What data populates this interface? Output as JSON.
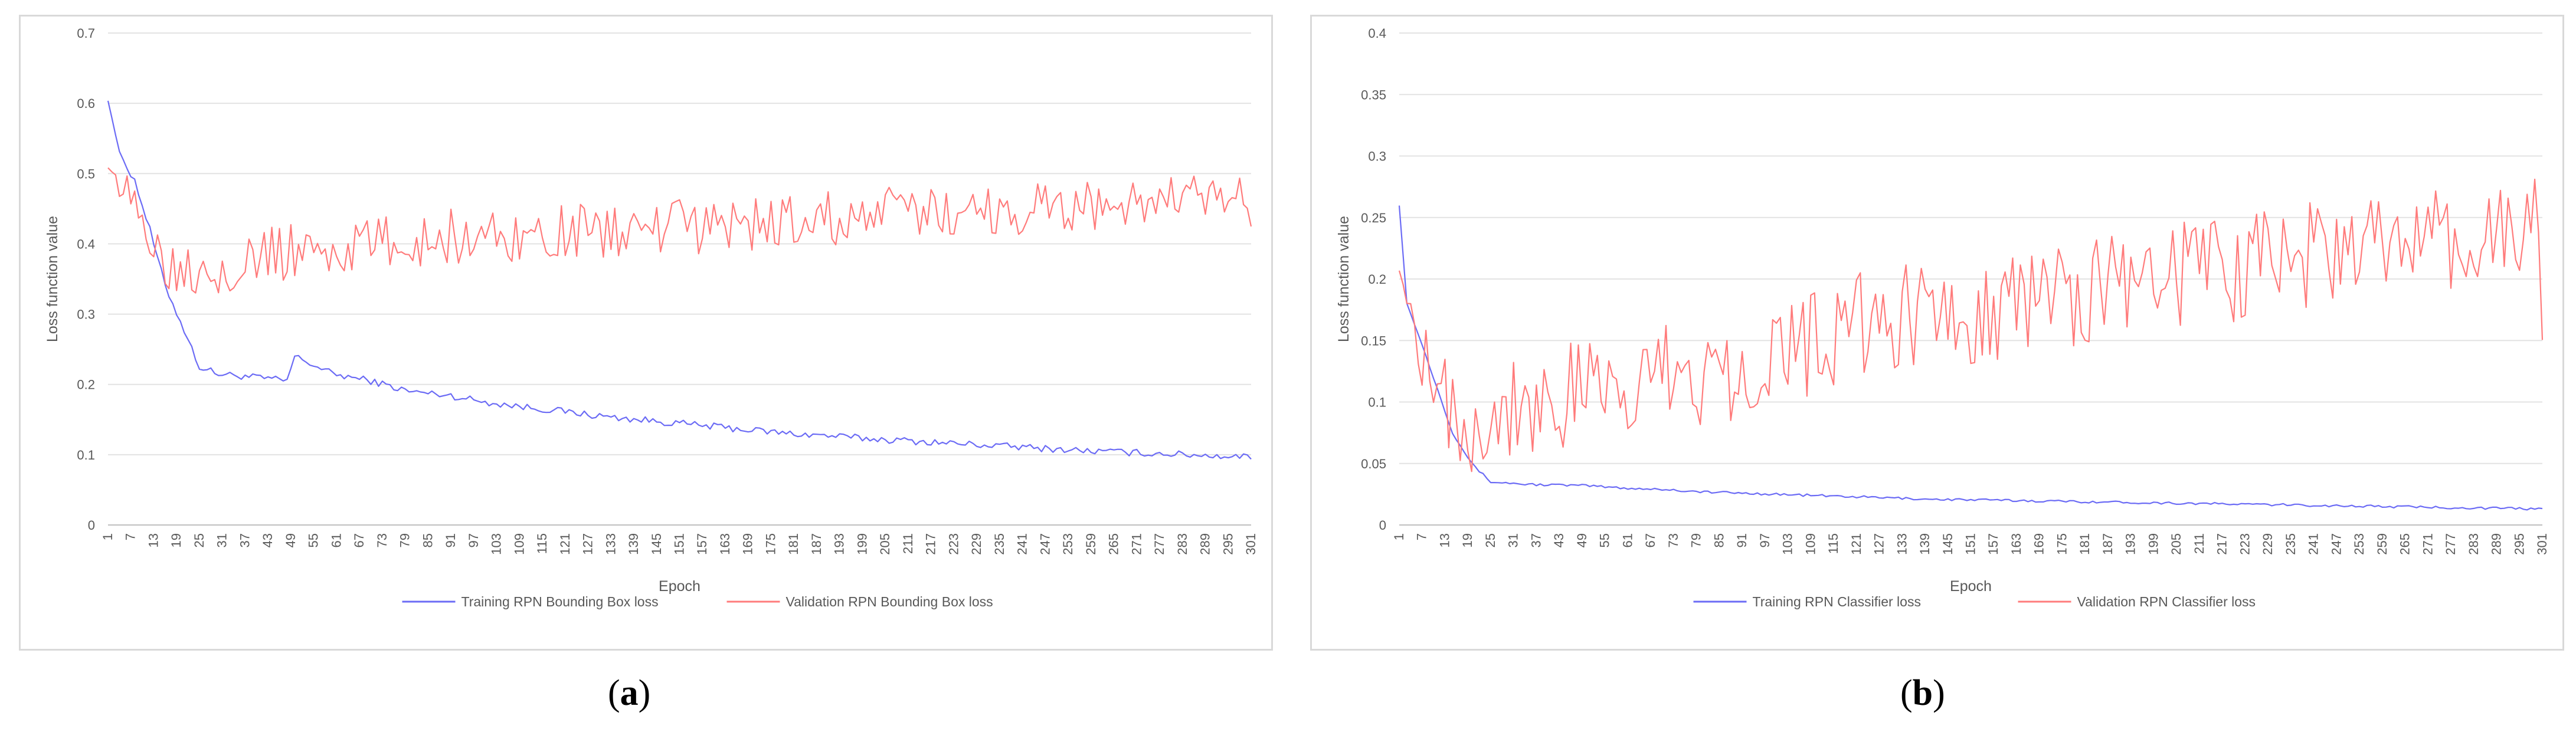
{
  "chart_data": [
    {
      "type": "line",
      "panel_label": "a",
      "xlabel": "Epoch",
      "ylabel": "Loss function value",
      "ylim": [
        0,
        0.7
      ],
      "yticks": [
        "0",
        "0.1",
        "0.2",
        "0.3",
        "0.4",
        "0.5",
        "0.6",
        "0.7"
      ],
      "xlim": [
        1,
        301
      ],
      "xtick_start": 1,
      "xtick_step": 6,
      "xtick_end": 301,
      "legend_position": "bottom",
      "series": [
        {
          "name": "Training RPN Bounding Box loss",
          "color": "#6b6bf5",
          "anchors": [
            [
              1,
              0.605
            ],
            [
              4,
              0.53
            ],
            [
              8,
              0.49
            ],
            [
              12,
              0.42
            ],
            [
              16,
              0.34
            ],
            [
              20,
              0.29
            ],
            [
              25,
              0.225
            ],
            [
              30,
              0.215
            ],
            [
              40,
              0.21
            ],
            [
              48,
              0.205
            ],
            [
              50,
              0.24
            ],
            [
              60,
              0.215
            ],
            [
              70,
              0.205
            ],
            [
              80,
              0.19
            ],
            [
              90,
              0.185
            ],
            [
              100,
              0.175
            ],
            [
              110,
              0.168
            ],
            [
              120,
              0.162
            ],
            [
              130,
              0.155
            ],
            [
              140,
              0.15
            ],
            [
              150,
              0.145
            ],
            [
              160,
              0.14
            ],
            [
              170,
              0.135
            ],
            [
              180,
              0.13
            ],
            [
              190,
              0.127
            ],
            [
              200,
              0.123
            ],
            [
              210,
              0.12
            ],
            [
              220,
              0.117
            ],
            [
              230,
              0.114
            ],
            [
              240,
              0.111
            ],
            [
              250,
              0.108
            ],
            [
              260,
              0.105
            ],
            [
              270,
              0.103
            ],
            [
              280,
              0.101
            ],
            [
              290,
              0.099
            ],
            [
              301,
              0.097
            ]
          ],
          "noise": 0.005
        },
        {
          "name": "Validation RPN Bounding Box loss",
          "color": "#ff7b7b",
          "anchors": [
            [
              1,
              0.52
            ],
            [
              5,
              0.46
            ],
            [
              10,
              0.45
            ],
            [
              15,
              0.38
            ],
            [
              20,
              0.37
            ],
            [
              25,
              0.37
            ],
            [
              30,
              0.37
            ],
            [
              40,
              0.38
            ],
            [
              50,
              0.39
            ],
            [
              60,
              0.39
            ],
            [
              70,
              0.4
            ],
            [
              80,
              0.4
            ],
            [
              90,
              0.41
            ],
            [
              100,
              0.41
            ],
            [
              120,
              0.415
            ],
            [
              140,
              0.42
            ],
            [
              160,
              0.425
            ],
            [
              180,
              0.43
            ],
            [
              200,
              0.44
            ],
            [
              220,
              0.445
            ],
            [
              240,
              0.45
            ],
            [
              260,
              0.455
            ],
            [
              280,
              0.46
            ],
            [
              300,
              0.46
            ],
            [
              301,
              0.405
            ]
          ],
          "noise": 0.04
        }
      ]
    },
    {
      "type": "line",
      "panel_label": "b",
      "xlabel": "Epoch",
      "ylabel": "Loss function value",
      "ylim": [
        0,
        0.4
      ],
      "yticks": [
        "0",
        "0.05",
        "0.1",
        "0.15",
        "0.2",
        "0.25",
        "0.3",
        "0.35",
        "0.4"
      ],
      "xlim": [
        1,
        301
      ],
      "xtick_start": 1,
      "xtick_step": 6,
      "xtick_end": 301,
      "legend_position": "bottom",
      "series": [
        {
          "name": "Training RPN Classifier loss",
          "color": "#6b6bf5",
          "anchors": [
            [
              1,
              0.26
            ],
            [
              3,
              0.18
            ],
            [
              6,
              0.155
            ],
            [
              10,
              0.12
            ],
            [
              15,
              0.075
            ],
            [
              20,
              0.05
            ],
            [
              25,
              0.035
            ],
            [
              35,
              0.033
            ],
            [
              50,
              0.032
            ],
            [
              60,
              0.03
            ],
            [
              70,
              0.029
            ],
            [
              80,
              0.027
            ],
            [
              90,
              0.026
            ],
            [
              100,
              0.025
            ],
            [
              120,
              0.023
            ],
            [
              140,
              0.021
            ],
            [
              160,
              0.02
            ],
            [
              180,
              0.019
            ],
            [
              200,
              0.018
            ],
            [
              220,
              0.017
            ],
            [
              240,
              0.016
            ],
            [
              260,
              0.015
            ],
            [
              280,
              0.014
            ],
            [
              301,
              0.013
            ]
          ],
          "noise": 0.001
        },
        {
          "name": "Validation RPN Classifier loss",
          "color": "#ff7b7b",
          "anchors": [
            [
              1,
              0.22
            ],
            [
              5,
              0.16
            ],
            [
              10,
              0.14
            ],
            [
              15,
              0.09
            ],
            [
              20,
              0.085
            ],
            [
              25,
              0.08
            ],
            [
              30,
              0.1
            ],
            [
              40,
              0.1
            ],
            [
              50,
              0.105
            ],
            [
              60,
              0.11
            ],
            [
              70,
              0.12
            ],
            [
              80,
              0.125
            ],
            [
              90,
              0.13
            ],
            [
              100,
              0.14
            ],
            [
              120,
              0.16
            ],
            [
              140,
              0.17
            ],
            [
              160,
              0.18
            ],
            [
              180,
              0.19
            ],
            [
              200,
              0.2
            ],
            [
              220,
              0.21
            ],
            [
              240,
              0.22
            ],
            [
              260,
              0.225
            ],
            [
              280,
              0.23
            ],
            [
              300,
              0.24
            ],
            [
              301,
              0.17
            ]
          ],
          "noise": 0.045
        }
      ]
    }
  ],
  "captions": {
    "a": "a",
    "b": "b"
  }
}
